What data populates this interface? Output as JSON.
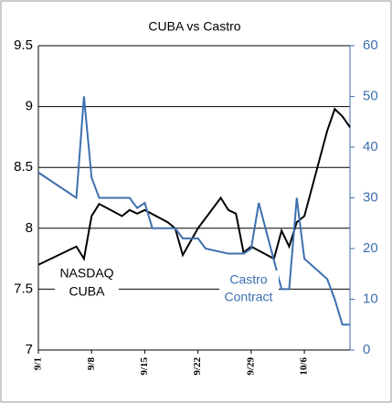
{
  "chart_data": {
    "type": "line",
    "title": "CUBA vs Castro",
    "xlim": [
      "9/1",
      "10/12"
    ],
    "xticks": [
      "9/1",
      "9/8",
      "9/15",
      "9/22",
      "9/29",
      "10/6"
    ],
    "ylim": [
      7,
      9.5
    ],
    "yticks": [
      7,
      7.5,
      8,
      8.5,
      9,
      9.5
    ],
    "y2lim": [
      0,
      60
    ],
    "y2ticks": [
      0,
      10,
      20,
      30,
      40,
      50,
      60
    ],
    "grid": true,
    "annotations": [
      "NASDAQ",
      "CUBA",
      "Castro",
      "Contract"
    ],
    "series": [
      {
        "name": "NASDAQ CUBA",
        "color": "#000000",
        "x": [
          "9/1",
          "9/6",
          "9/7",
          "9/8",
          "9/9",
          "9/12",
          "9/13",
          "9/14",
          "9/15",
          "9/18",
          "9/19",
          "9/20",
          "9/22",
          "9/25",
          "9/26",
          "9/27",
          "9/28",
          "9/29",
          "10/2",
          "10/3",
          "10/4",
          "10/5",
          "10/6",
          "10/9",
          "10/10",
          "10/11",
          "10/12"
        ],
        "values": [
          7.7,
          7.85,
          7.75,
          8.1,
          8.2,
          8.1,
          8.15,
          8.12,
          8.15,
          8.05,
          8.0,
          7.78,
          8.0,
          8.25,
          8.15,
          8.12,
          7.8,
          7.85,
          7.75,
          7.98,
          7.85,
          8.05,
          8.1,
          8.8,
          8.98,
          8.92,
          8.83
        ]
      },
      {
        "name": "Castro Contract",
        "color": "#3d6fae",
        "axis": "y2",
        "x": [
          "9/1",
          "9/6",
          "9/7",
          "9/8",
          "9/9",
          "9/12",
          "9/13",
          "9/14",
          "9/15",
          "9/16",
          "9/18",
          "9/19",
          "9/20",
          "9/22",
          "9/23",
          "9/26",
          "9/27",
          "9/28",
          "9/29",
          "9/30",
          "10/3",
          "10/4",
          "10/5",
          "10/6",
          "10/9",
          "10/10",
          "10/11",
          "10/12"
        ],
        "values": [
          35,
          30,
          50,
          34,
          30,
          30,
          30,
          28,
          29,
          24,
          24,
          24,
          22,
          22,
          20,
          19,
          19,
          19,
          20,
          29,
          12,
          12,
          30,
          18,
          14,
          10,
          5,
          5
        ]
      }
    ]
  }
}
